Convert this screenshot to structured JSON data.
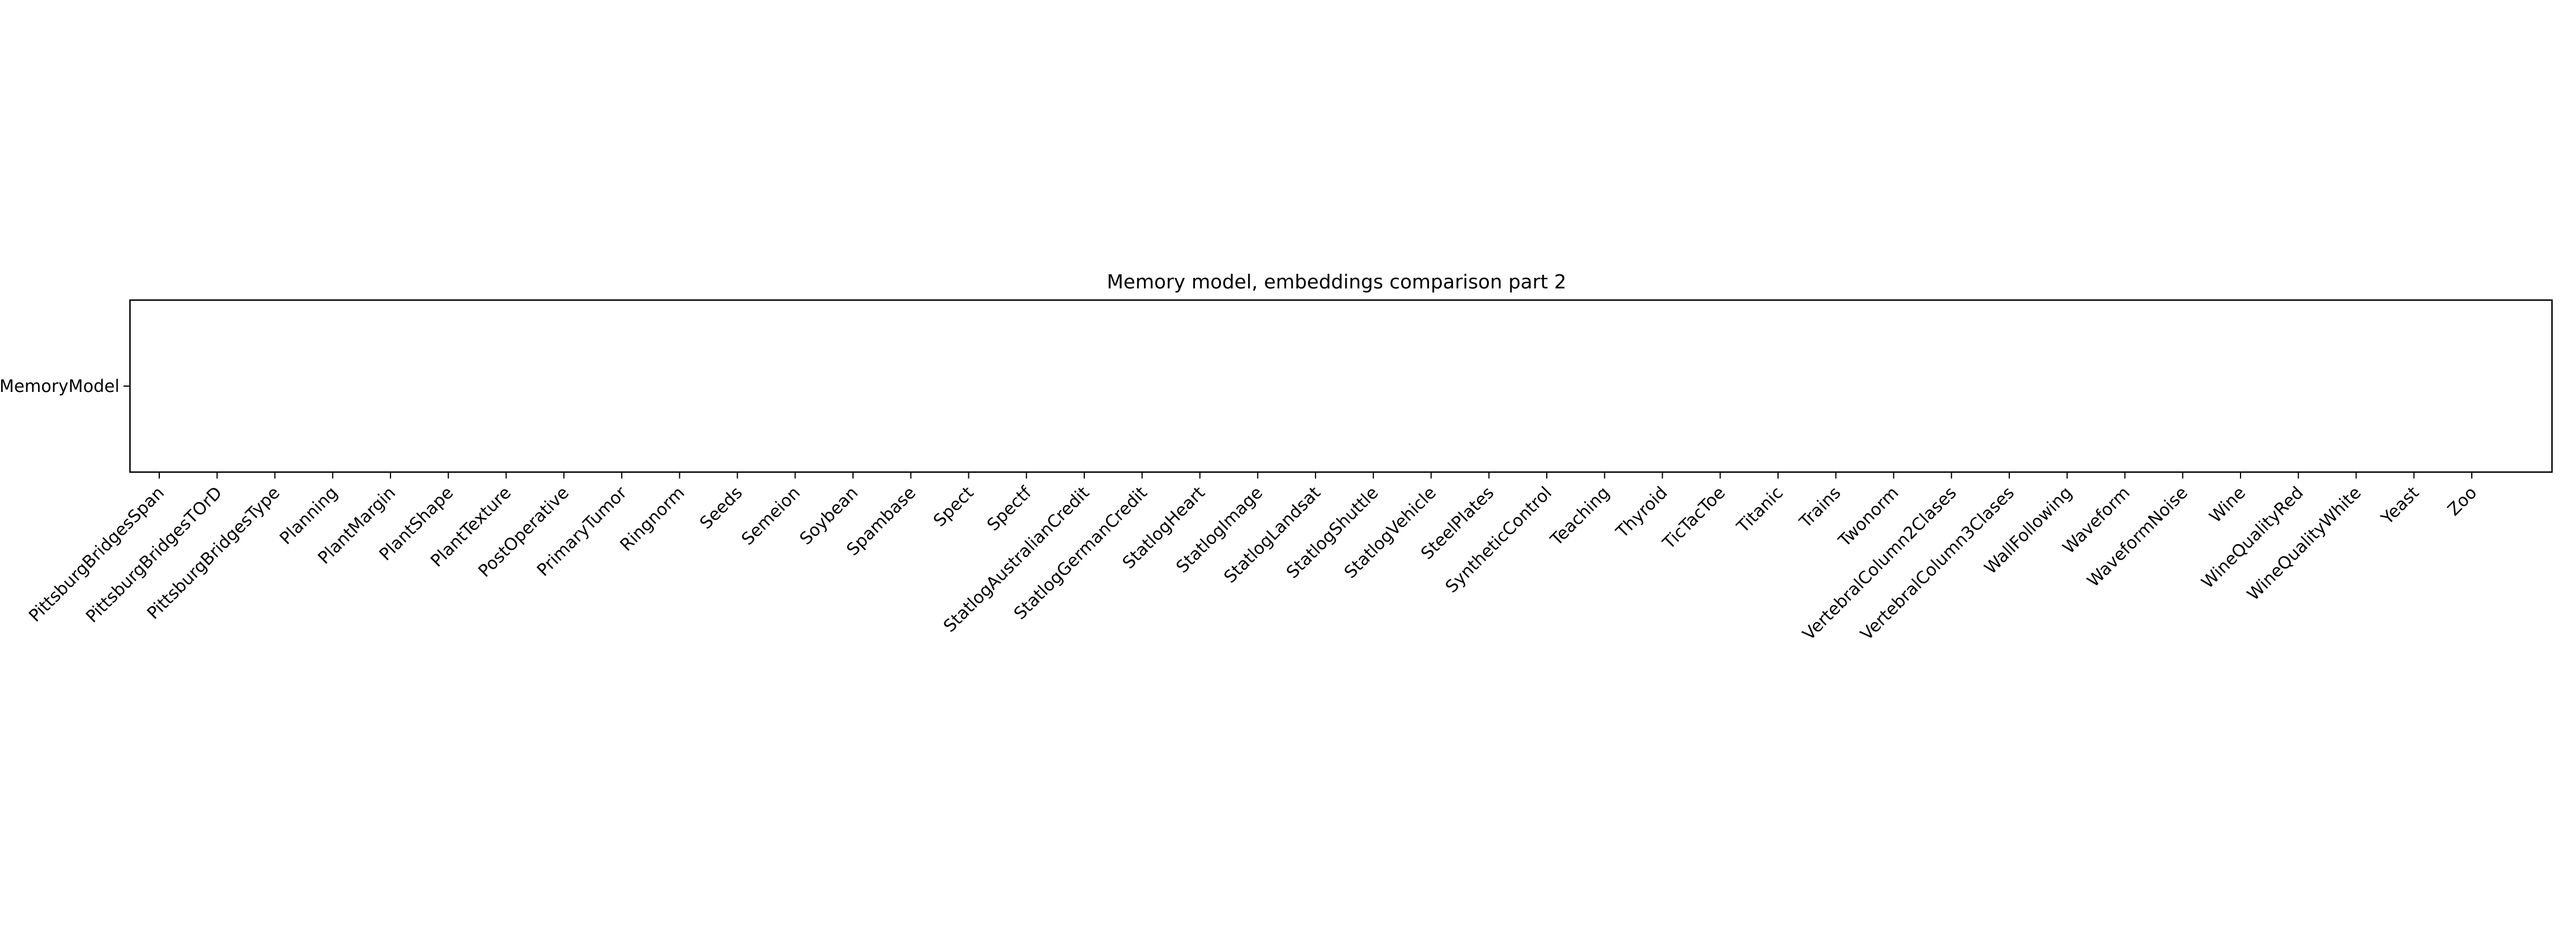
{
  "chart_data": {
    "type": "heatmap",
    "title": "Memory model, embeddings comparison part 2",
    "xlabel": "",
    "ylabel": "",
    "grid": false,
    "legend": "none",
    "rows": [
      "MemoryModel"
    ],
    "columns": [
      "PittsburgBridgesSpan",
      "PittsburgBridgesTOrD",
      "PittsburgBridgesType",
      "Planning",
      "PlantMargin",
      "PlantShape",
      "PlantTexture",
      "PostOperative",
      "PrimaryTumor",
      "Ringnorm",
      "Seeds",
      "Semeion",
      "Soybean",
      "Spambase",
      "Spect",
      "Spectf",
      "StatlogAustralianCredit",
      "StatlogGermanCredit",
      "StatlogHeart",
      "StatlogImage",
      "StatlogLandsat",
      "StatlogShuttle",
      "StatlogVehicle",
      "SteelPlates",
      "SyntheticControl",
      "Teaching",
      "Thyroid",
      "TicTacToe",
      "Titanic",
      "Trains",
      "Twonorm",
      "VertebralColumn2Clases",
      "VertebralColumn3Clases",
      "WallFollowing",
      "Waveform",
      "WaveformNoise",
      "Wine",
      "WineQualityRed",
      "WineQualityWhite",
      "Yeast",
      "Zoo"
    ],
    "values": []
  },
  "colors": {
    "axis": "#000000",
    "background": "#ffffff"
  }
}
